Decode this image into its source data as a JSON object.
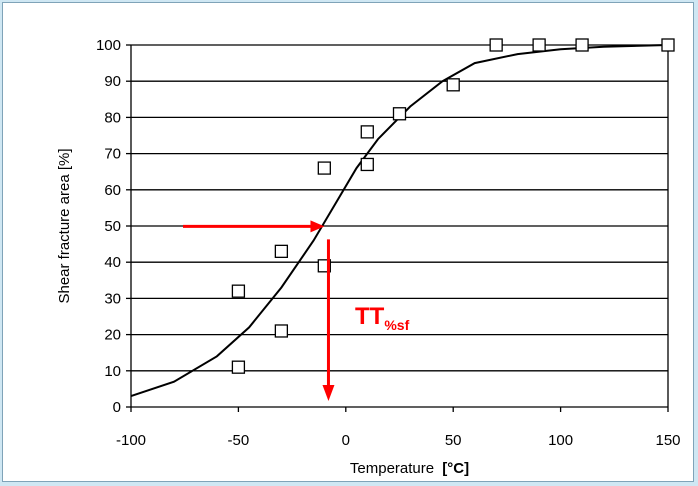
{
  "chart_data": {
    "type": "scatter",
    "title": "",
    "xlabel": "Temperature",
    "xlabel_unit": "[°C]",
    "ylabel": "Shear fracture area [%]",
    "xlim": [
      -100,
      150
    ],
    "ylim": [
      0,
      100
    ],
    "xticks": [
      -100,
      -50,
      0,
      50,
      100,
      150
    ],
    "yticks": [
      0,
      10,
      20,
      30,
      40,
      50,
      60,
      70,
      80,
      90,
      100
    ],
    "grid": "horizontal",
    "series": [
      {
        "type": "scatter",
        "marker": "square",
        "x": [
          -50,
          -50,
          -30,
          -30,
          -10,
          -10,
          10,
          10,
          25,
          50,
          70,
          90,
          110,
          150
        ],
        "y": [
          11,
          32,
          21,
          43,
          39,
          66,
          67,
          76,
          81,
          89,
          100,
          100,
          100,
          100
        ]
      },
      {
        "type": "line",
        "x": [
          -100,
          -80,
          -60,
          -45,
          -30,
          -15,
          -5,
          5,
          15,
          30,
          45,
          60,
          80,
          100,
          120,
          150
        ],
        "y": [
          3,
          7,
          14,
          22,
          33,
          46,
          56,
          66,
          74,
          83,
          90,
          95,
          97.5,
          98.8,
          99.5,
          100
        ]
      }
    ],
    "annotation": {
      "text_main": "TT",
      "text_sub": "%sf",
      "color": "#ff0000",
      "x_level": -9,
      "y_level": 51
    }
  },
  "colors": {
    "background": "#cfe7f3",
    "plot": "#ffffff",
    "grid": "#000000",
    "annotation": "#ff0000"
  }
}
